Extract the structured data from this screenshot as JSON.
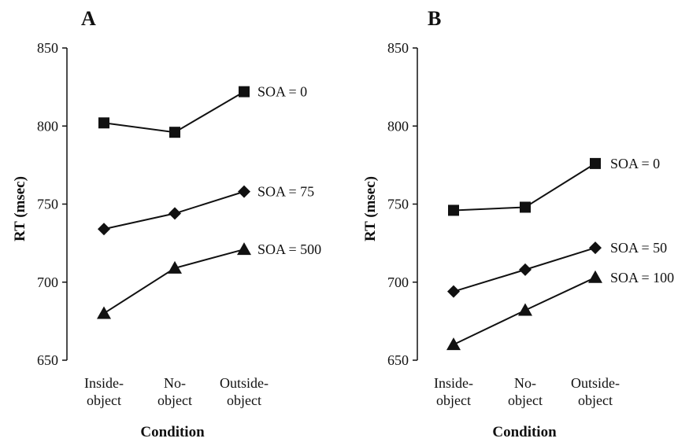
{
  "chart_data": [
    {
      "type": "line",
      "panel_label": "A",
      "xlabel": "Condition",
      "ylabel": "RT (msec)",
      "ylim": [
        650,
        850
      ],
      "yticks": [
        650,
        700,
        750,
        800,
        850
      ],
      "categories": [
        [
          "Inside-",
          "object"
        ],
        [
          "No-",
          "object"
        ],
        [
          "Outside-",
          "object"
        ]
      ],
      "series": [
        {
          "name": "SOA = 0",
          "marker": "square",
          "values": [
            802,
            796,
            822
          ]
        },
        {
          "name": "SOA = 75",
          "marker": "diamond",
          "values": [
            734,
            744,
            758
          ]
        },
        {
          "name": "SOA = 500",
          "marker": "triangle",
          "values": [
            680,
            709,
            721
          ]
        }
      ]
    },
    {
      "type": "line",
      "panel_label": "B",
      "xlabel": "Condition",
      "ylabel": "RT (msec)",
      "ylim": [
        650,
        850
      ],
      "yticks": [
        650,
        700,
        750,
        800,
        850
      ],
      "categories": [
        [
          "Inside-",
          "object"
        ],
        [
          "No-",
          "object"
        ],
        [
          "Outside-",
          "object"
        ]
      ],
      "series": [
        {
          "name": "SOA = 0",
          "marker": "square",
          "values": [
            746,
            748,
            776
          ]
        },
        {
          "name": "SOA = 50",
          "marker": "diamond",
          "values": [
            694,
            708,
            722
          ]
        },
        {
          "name": "SOA = 100",
          "marker": "triangle",
          "values": [
            660,
            682,
            703
          ]
        }
      ]
    }
  ]
}
